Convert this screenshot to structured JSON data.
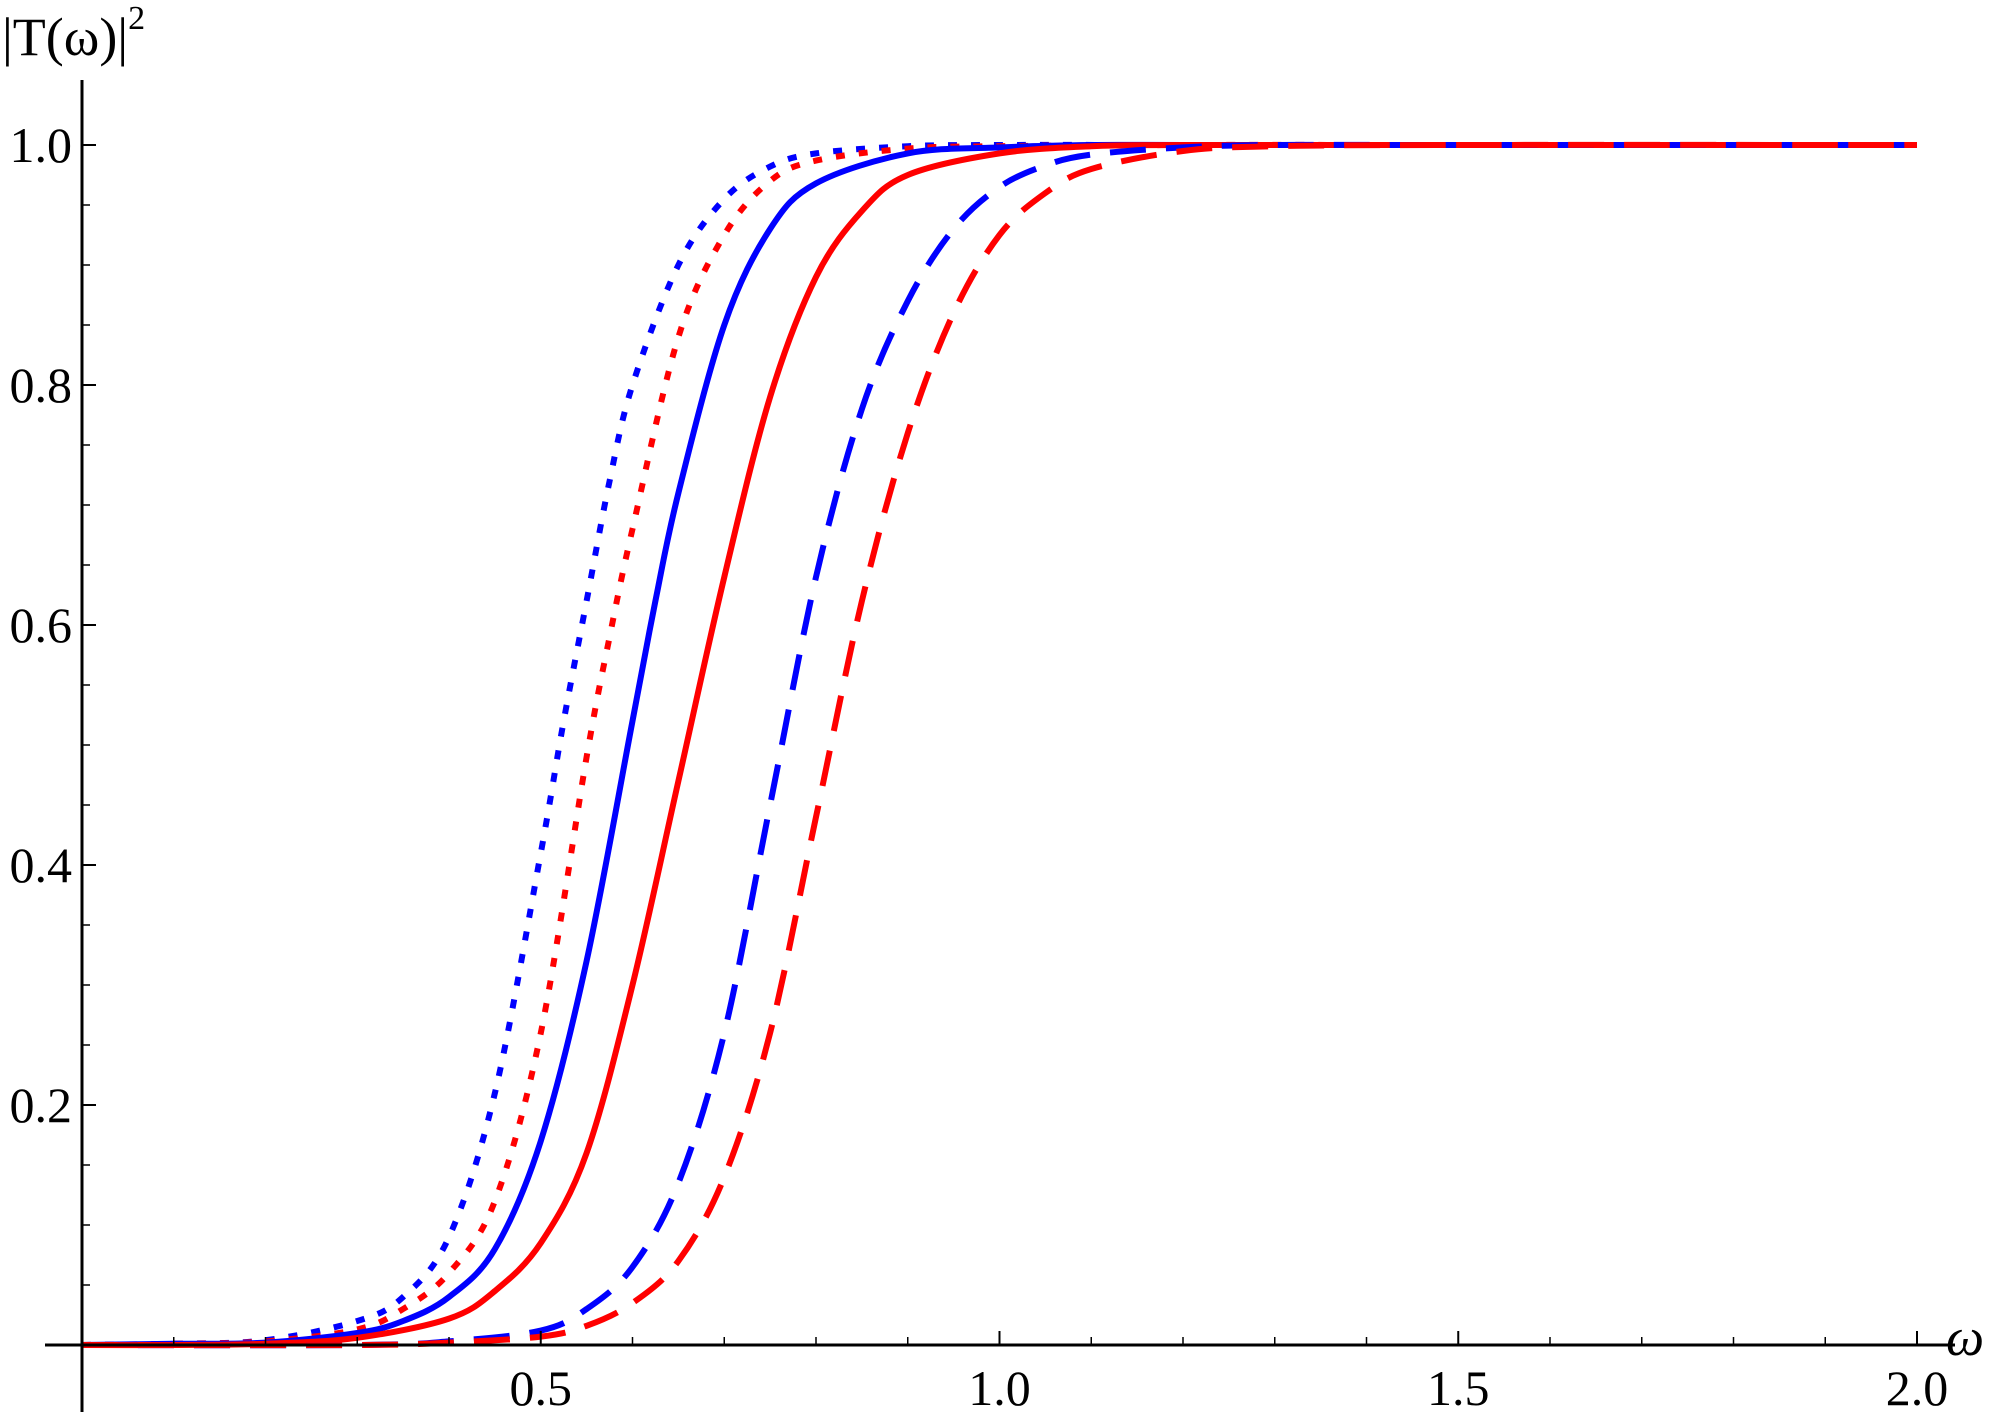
{
  "chart_data": {
    "type": "line",
    "title": "",
    "xlabel": "ω",
    "ylabel_text": "|T(ω)|",
    "ylabel_exponent": "2",
    "xlim": [
      0,
      2.0
    ],
    "ylim": [
      0,
      1.0
    ],
    "x_ticks": [
      0.5,
      1.0,
      1.5,
      2.0
    ],
    "x_tick_labels": [
      "0.5",
      "1.0",
      "1.5",
      "2.0"
    ],
    "y_ticks": [
      0.2,
      0.4,
      0.6,
      0.8,
      1.0
    ],
    "y_tick_labels": [
      "0.2",
      "0.4",
      "0.6",
      "0.8",
      "1.0"
    ],
    "grid": false,
    "legend": "none",
    "series": [
      {
        "color": "#0000ff",
        "style": "dotted",
        "x": [
          0.0,
          0.1,
          0.2,
          0.3,
          0.35,
          0.4,
          0.45,
          0.5,
          0.525,
          0.55,
          0.575,
          0.6,
          0.65,
          0.7,
          0.75,
          0.8,
          0.9,
          1.0,
          1.2,
          1.5,
          2.0
        ],
        "y": [
          0.0,
          0.001,
          0.004,
          0.02,
          0.04,
          0.09,
          0.21,
          0.41,
          0.52,
          0.62,
          0.72,
          0.8,
          0.9,
          0.955,
          0.982,
          0.993,
          0.999,
          1.0,
          1.0,
          1.0,
          1.0
        ]
      },
      {
        "color": "#ff0000",
        "style": "dotted",
        "x": [
          0.0,
          0.1,
          0.2,
          0.3,
          0.35,
          0.4,
          0.45,
          0.5,
          0.55,
          0.575,
          0.6,
          0.65,
          0.7,
          0.75,
          0.8,
          0.9,
          1.0,
          1.2,
          1.5,
          2.0
        ],
        "y": [
          0.0,
          0.001,
          0.003,
          0.013,
          0.03,
          0.06,
          0.12,
          0.26,
          0.49,
          0.59,
          0.68,
          0.84,
          0.925,
          0.97,
          0.987,
          0.997,
          0.999,
          1.0,
          1.0,
          1.0
        ]
      },
      {
        "color": "#0000ff",
        "style": "solid",
        "x": [
          0.0,
          0.1,
          0.2,
          0.3,
          0.35,
          0.4,
          0.45,
          0.5,
          0.55,
          0.6,
          0.625,
          0.65,
          0.7,
          0.75,
          0.8,
          0.9,
          1.0,
          1.1,
          1.2,
          1.5,
          2.0
        ],
        "y": [
          0.0,
          0.001,
          0.002,
          0.01,
          0.02,
          0.04,
          0.08,
          0.17,
          0.32,
          0.52,
          0.62,
          0.71,
          0.85,
          0.93,
          0.968,
          0.993,
          0.998,
          1.0,
          1.0,
          1.0,
          1.0
        ]
      },
      {
        "color": "#ff0000",
        "style": "solid",
        "x": [
          0.0,
          0.1,
          0.2,
          0.3,
          0.4,
          0.45,
          0.5,
          0.55,
          0.6,
          0.65,
          0.7,
          0.75,
          0.8,
          0.85,
          0.9,
          1.0,
          1.1,
          1.2,
          1.5,
          2.0
        ],
        "y": [
          0.0,
          0.0,
          0.001,
          0.006,
          0.022,
          0.045,
          0.085,
          0.16,
          0.3,
          0.47,
          0.64,
          0.79,
          0.89,
          0.945,
          0.975,
          0.993,
          0.999,
          1.0,
          1.0,
          1.0
        ]
      },
      {
        "color": "#0000ff",
        "style": "dashed",
        "x": [
          0.0,
          0.3,
          0.4,
          0.5,
          0.55,
          0.6,
          0.65,
          0.7,
          0.75,
          0.8,
          0.85,
          0.9,
          0.95,
          1.0,
          1.05,
          1.1,
          1.2,
          1.3,
          1.5,
          2.0
        ],
        "y": [
          0.0,
          0.0,
          0.003,
          0.012,
          0.03,
          0.065,
          0.135,
          0.26,
          0.45,
          0.64,
          0.78,
          0.87,
          0.93,
          0.965,
          0.983,
          0.992,
          0.998,
          1.0,
          1.0,
          1.0
        ]
      },
      {
        "color": "#ff0000",
        "style": "dashed",
        "x": [
          0.0,
          0.3,
          0.4,
          0.5,
          0.55,
          0.6,
          0.65,
          0.7,
          0.75,
          0.8,
          0.85,
          0.9,
          0.95,
          1.0,
          1.05,
          1.1,
          1.2,
          1.3,
          1.5,
          2.0
        ],
        "y": [
          0.0,
          0.0,
          0.002,
          0.007,
          0.016,
          0.035,
          0.07,
          0.14,
          0.26,
          0.44,
          0.62,
          0.76,
          0.86,
          0.925,
          0.96,
          0.98,
          0.995,
          0.999,
          1.0,
          1.0
        ]
      }
    ]
  }
}
